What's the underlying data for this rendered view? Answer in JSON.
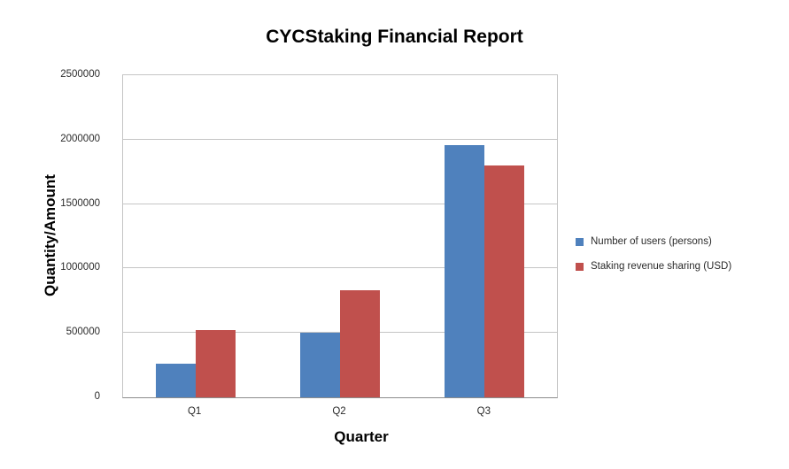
{
  "page": {
    "background": "#ffffff"
  },
  "chart_data": {
    "type": "bar",
    "title": "CYCStaking Financial Report",
    "xlabel": "Quarter",
    "ylabel": "Quantity/Amount",
    "categories": [
      "Q1",
      "Q2",
      "Q3"
    ],
    "series": [
      {
        "name": "Number of users (persons)",
        "color": "#4F81BD",
        "values": [
          260000,
          500000,
          1960000
        ]
      },
      {
        "name": "Staking revenue sharing (USD)",
        "color": "#C0504D",
        "values": [
          520000,
          830000,
          1800000
        ]
      }
    ],
    "ylim": [
      0,
      2500000
    ],
    "ytick_interval": 500000,
    "ytick_labels": [
      "0",
      "500000",
      "1000000",
      "1500000",
      "2000000",
      "2500000"
    ],
    "grid": true,
    "legend_position": "right",
    "colors": {
      "gridline": "#C5C5C5",
      "axis_line": "#8C8C8C",
      "plot_border": "#C5C5C5",
      "tick_text": "#2B2B2B",
      "title_text": "#000000"
    }
  }
}
